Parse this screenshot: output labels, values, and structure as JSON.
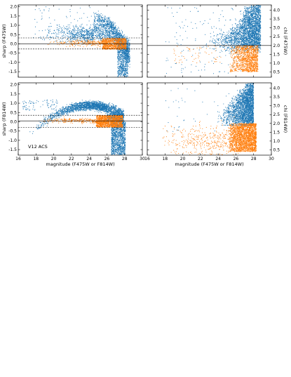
{
  "colors": {
    "blue": "#1f77b4",
    "orange": "#ff7f0e",
    "frame": "#000000",
    "background": "#ffffff"
  },
  "chart_data": [
    {
      "id": "top-left",
      "type": "scatter",
      "xlabel": "",
      "ylabel": "sharp (F475W)",
      "ylim": [
        -1.8,
        2.1
      ],
      "xlim": [
        16,
        30
      ],
      "yticks": [
        "-1.5",
        "-1.0",
        "-0.5",
        "0.0",
        "0.5",
        "1.0",
        "1.5",
        "2.0"
      ],
      "ytick_values": [
        -1.5,
        -1.0,
        -0.5,
        0.0,
        0.5,
        1.0,
        1.5,
        2.0
      ],
      "xticks": [
        "16",
        "18",
        "20",
        "22",
        "24",
        "26",
        "28",
        "30"
      ],
      "xtick_values": [
        16,
        18,
        20,
        22,
        24,
        26,
        28,
        30
      ],
      "show_xtick_labels": false,
      "hlines": [
        {
          "y": 0.32,
          "style": "dashed"
        },
        {
          "y": 0.0,
          "style": "solid"
        },
        {
          "y": -0.28,
          "style": "dashed"
        }
      ],
      "annotation": "",
      "series": [
        {
          "color": "blue",
          "shape": "sharp_all"
        },
        {
          "color": "orange",
          "shape": "sharp_sel"
        }
      ]
    },
    {
      "id": "top-right",
      "type": "scatter",
      "xlabel": "",
      "ylabel": "chi (F475W)",
      "ylim": [
        0.2,
        4.3
      ],
      "xlim": [
        16,
        30
      ],
      "yticks": [
        "0.5",
        "1.0",
        "1.5",
        "2.0",
        "2.5",
        "3.0",
        "3.5",
        "4.0"
      ],
      "ytick_values": [
        0.5,
        1.0,
        1.5,
        2.0,
        2.5,
        3.0,
        3.5,
        4.0
      ],
      "xticks": [
        "16",
        "18",
        "20",
        "22",
        "24",
        "26",
        "28",
        "30"
      ],
      "xtick_values": [
        16,
        18,
        20,
        22,
        24,
        26,
        28,
        30
      ],
      "show_xtick_labels": false,
      "hlines": [
        {
          "y": 2.0,
          "style": "solid"
        }
      ],
      "annotation": "",
      "series": [
        {
          "color": "blue",
          "shape": "chi_all"
        },
        {
          "color": "orange",
          "shape": "chi_sel"
        }
      ]
    },
    {
      "id": "bottom-left",
      "type": "scatter",
      "xlabel": "magnitude (F475W or F814W)",
      "ylabel": "sharp (F814W)",
      "ylim": [
        -1.8,
        2.1
      ],
      "xlim": [
        16,
        30
      ],
      "yticks": [
        "-1.5",
        "-1.0",
        "-0.5",
        "0.0",
        "0.5",
        "1.0",
        "1.5",
        "2.0"
      ],
      "ytick_values": [
        -1.5,
        -1.0,
        -0.5,
        0.0,
        0.5,
        1.0,
        1.5,
        2.0
      ],
      "xticks": [
        "16",
        "18",
        "20",
        "22",
        "24",
        "26",
        "28",
        "30"
      ],
      "xtick_values": [
        16,
        18,
        20,
        22,
        24,
        26,
        28,
        30
      ],
      "show_xtick_labels": true,
      "hlines": [
        {
          "y": 0.35,
          "style": "dashed"
        },
        {
          "y": 0.05,
          "style": "solid"
        },
        {
          "y": -0.3,
          "style": "dashed"
        }
      ],
      "annotation": "V12 ACS",
      "series": [
        {
          "color": "blue",
          "shape": "sharp814_all"
        },
        {
          "color": "orange",
          "shape": "sharp814_sel"
        }
      ]
    },
    {
      "id": "bottom-right",
      "type": "scatter",
      "xlabel": "magnitude (F475W or F814W)",
      "ylabel": "chi (F814W)",
      "ylim": [
        0.2,
        4.3
      ],
      "xlim": [
        16,
        30
      ],
      "yticks": [
        "0.5",
        "1.0",
        "1.5",
        "2.0",
        "2.5",
        "3.0",
        "3.5",
        "4.0"
      ],
      "ytick_values": [
        0.5,
        1.0,
        1.5,
        2.0,
        2.5,
        3.0,
        3.5,
        4.0
      ],
      "xticks": [
        "16",
        "18",
        "20",
        "22",
        "24",
        "26",
        "28",
        "30"
      ],
      "xtick_values": [
        16,
        18,
        20,
        22,
        24,
        26,
        28,
        30
      ],
      "show_xtick_labels": true,
      "hlines": [],
      "annotation": "",
      "series": [
        {
          "color": "blue",
          "shape": "chi814_all"
        },
        {
          "color": "orange",
          "shape": "chi814_sel"
        }
      ]
    }
  ]
}
